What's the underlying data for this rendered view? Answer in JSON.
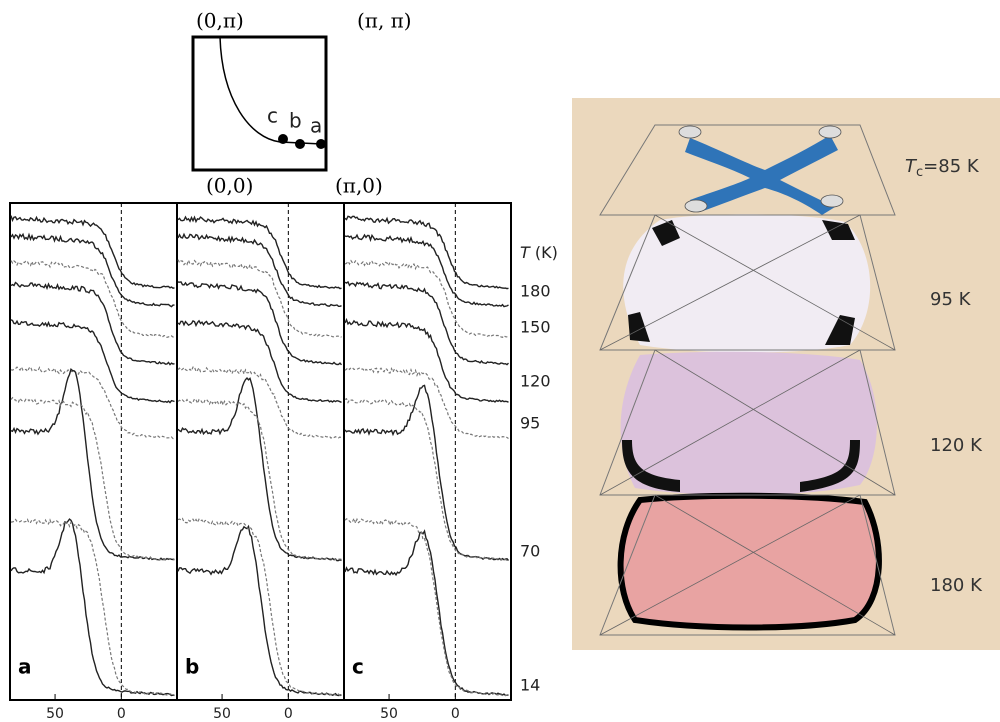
{
  "inset": {
    "corners": [
      "(0,π)",
      "(π, π)",
      "(0,0)",
      "(π,0)"
    ],
    "points": [
      "c",
      "b",
      "a"
    ]
  },
  "panels": [
    {
      "label": "a",
      "xlim": [
        84,
        -42
      ],
      "xticks": [
        50,
        0
      ]
    },
    {
      "label": "b",
      "xlim": [
        84,
        -42
      ],
      "xticks": [
        50,
        0
      ]
    },
    {
      "label": "c",
      "xlim": [
        84,
        -42
      ],
      "xticks": [
        50,
        0
      ]
    }
  ],
  "temperature": {
    "symbol": "T",
    "unit": "(K)",
    "values": [
      180,
      150,
      120,
      95,
      70,
      14
    ]
  },
  "surfaces": {
    "tc_symbol": "T",
    "tc_subscript": "c",
    "tc_text": "=85 K",
    "layers": [
      "95 K",
      "120 K",
      "180 K"
    ]
  }
}
